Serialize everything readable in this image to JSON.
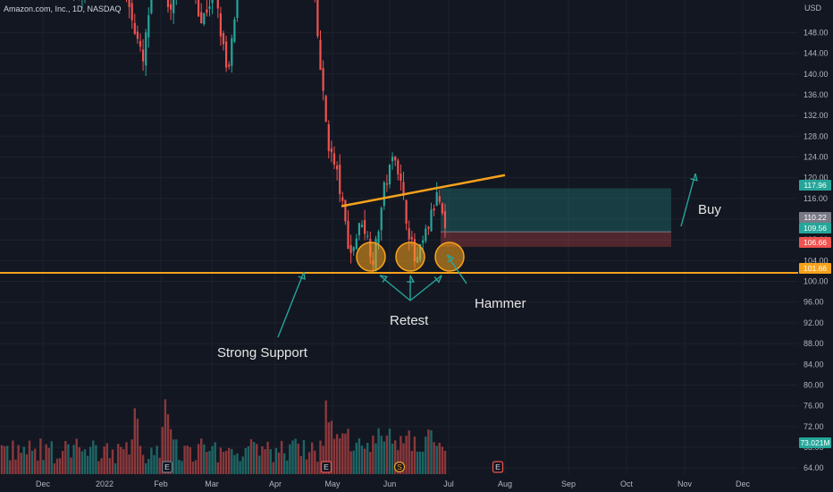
{
  "header": {
    "title": "Amazon.com, Inc., 1D, NASDAQ",
    "currency": "USD"
  },
  "colors": {
    "background": "#131722",
    "up": "#26a69a",
    "down": "#ef5350",
    "support": "#f7a21b",
    "annotation": "#26a69a",
    "grid": "#1e222d"
  },
  "chart_data": {
    "type": "candlestick",
    "y_ticks": [
      64,
      68,
      72,
      76,
      80,
      84,
      88,
      92,
      96,
      100,
      104,
      108,
      112,
      116,
      120,
      124,
      128,
      132,
      136,
      140,
      144,
      148
    ],
    "y_tick_labels": [
      "64.00",
      "68.00",
      "72.00",
      "76.00",
      "80.00",
      "84.00",
      "88.00",
      "92.00",
      "96.00",
      "100.00",
      "104.00",
      "108.00",
      "112.00",
      "116.00",
      "120.00",
      "124.00",
      "128.00",
      "132.00",
      "136.00",
      "140.00",
      "144.00",
      "148.00"
    ],
    "x_months": [
      "Dec",
      "2022",
      "Feb",
      "Mar",
      "Apr",
      "May",
      "Jun",
      "Jul",
      "Aug",
      "Sep",
      "Oct",
      "Nov",
      "Dec"
    ],
    "price_tags": [
      {
        "label": "117.96",
        "color": "#26a69a"
      },
      {
        "label": "110.22",
        "color": "#787b86"
      },
      {
        "label": "109.56",
        "color": "#26a69a"
      },
      {
        "label": "106.66",
        "color": "#ef5350"
      },
      {
        "label": "101.66",
        "color": "#f7a21b"
      },
      {
        "label": "73.021M",
        "color": "#26a69a"
      }
    ],
    "support_level": 101.66,
    "trendline": {
      "from": 114.5,
      "to": 120.5
    },
    "position": {
      "entry": 109.56,
      "target": 117.96,
      "stop": 106.66
    },
    "event_markers": [
      "E",
      "E",
      "S",
      "E"
    ],
    "annotations": {
      "support": "Strong Support",
      "retest": "Retest",
      "hammer": "Hammer",
      "buy": "Buy"
    }
  }
}
